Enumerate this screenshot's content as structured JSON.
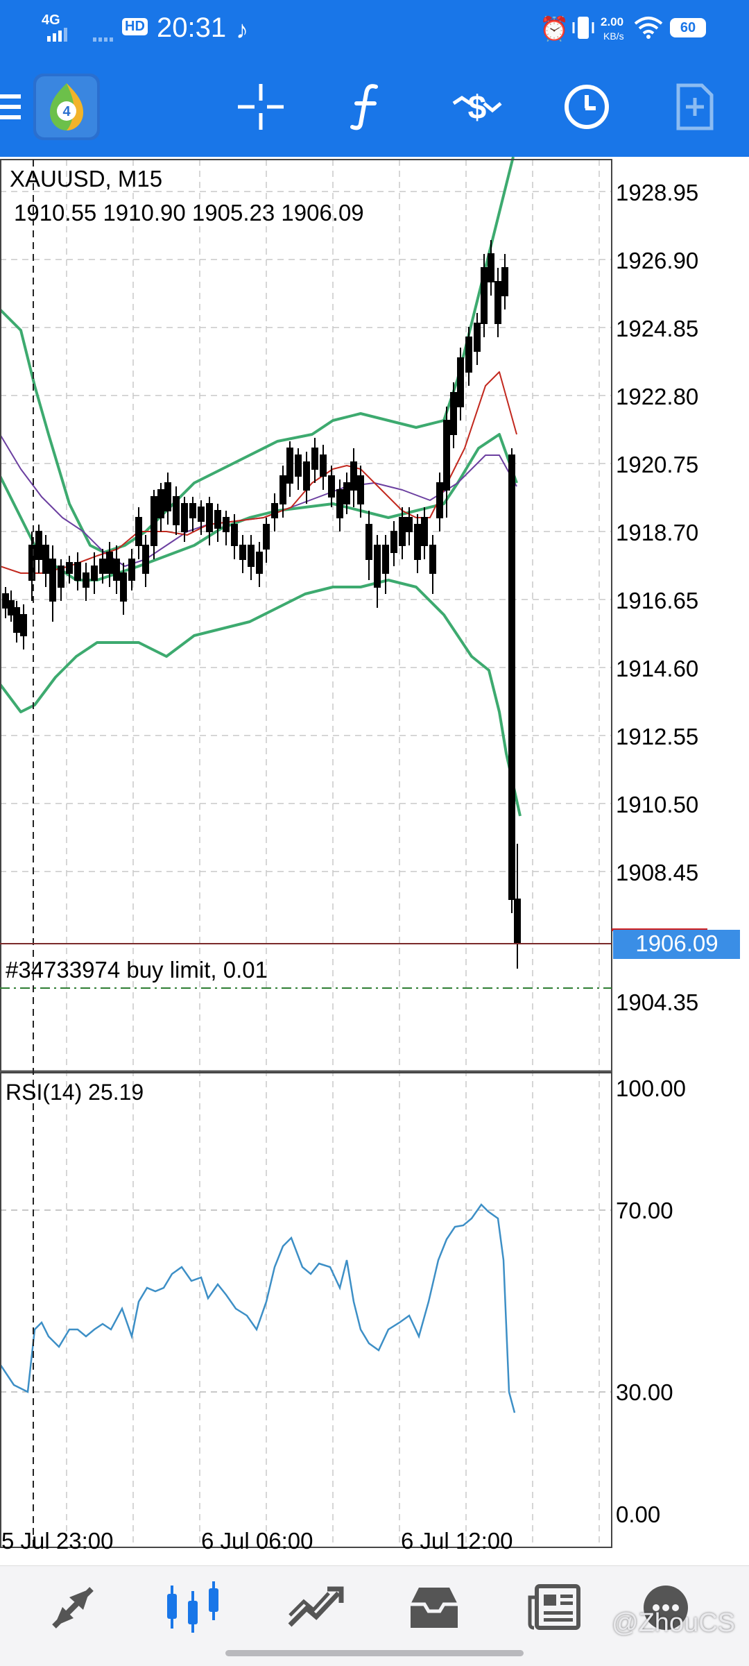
{
  "status_bar": {
    "network": "4G",
    "hd": "HD",
    "time": "20:31",
    "speed_value": "2.00",
    "speed_unit": "KB/s",
    "battery": "60"
  },
  "toolbar": {
    "icons": [
      "metatrader-logo-icon",
      "crosshair-icon",
      "indicators-f-icon",
      "objects-icon",
      "timeframe-clock-icon",
      "templates-icon"
    ]
  },
  "chart": {
    "symbol": "XAUUSD,  M15",
    "ohlc": "1910.55   1910.90   1905.23   1906.09",
    "current_price": "1906.09",
    "order_label": "#34733974  buy limit,  0.01",
    "order_level_label": "1904.35",
    "price_ticks": [
      "1928.95",
      "1926.90",
      "1924.85",
      "1922.80",
      "1920.75",
      "1918.70",
      "1916.65",
      "1914.60",
      "1912.55",
      "1910.50",
      "1908.45"
    ],
    "time_labels": [
      "5  Jul  23:00",
      "6  Jul  06:00",
      "6  Jul  12:00"
    ],
    "colors": {
      "bollinger": "#3daa6f",
      "ma_red": "#c2281e",
      "ma_purple": "#6b3fa0",
      "candle": "#000000",
      "rsi_line": "#3d8fc6",
      "price_tag_bg": "#3a8ee6",
      "bid_line": "#7a2a2a",
      "order_line": "#2e7d32"
    }
  },
  "rsi": {
    "label": "RSI(14)  25.19",
    "ticks": [
      "100.00",
      "70.00",
      "30.00",
      "0.00"
    ]
  },
  "bottom_nav": {
    "items": [
      "quotes-icon",
      "chart-icon",
      "trade-icon",
      "history-icon",
      "news-icon",
      "chat-icon"
    ]
  },
  "watermark": "@ZhouCS"
}
